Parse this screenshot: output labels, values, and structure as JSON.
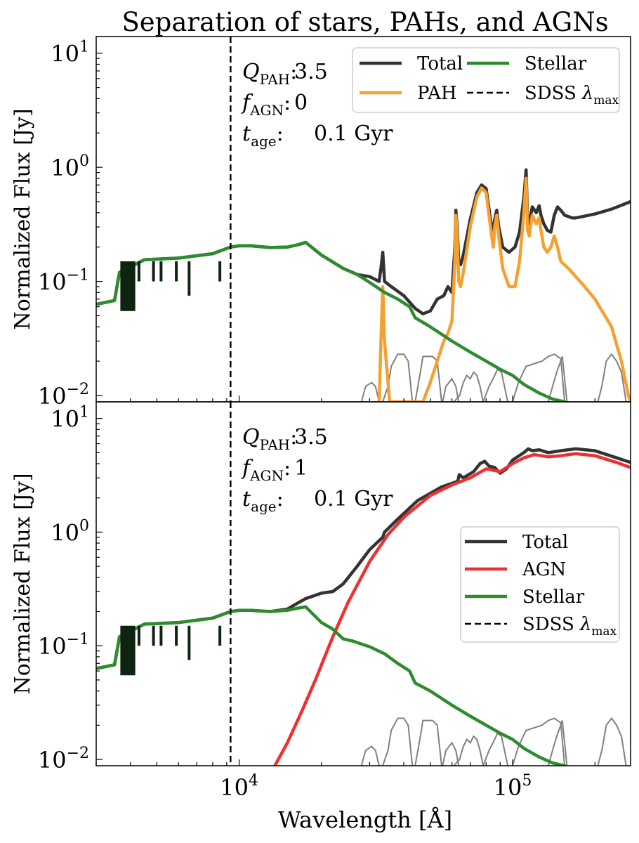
{
  "figure": {
    "title": "Separation of stars, PAHs, and AGNs",
    "xlabel": "Wavelength [Å]",
    "ylabel": "Normalized Flux [Jy]"
  },
  "chart_data": [
    {
      "type": "line",
      "panel": "top",
      "xscale": "log",
      "yscale": "log",
      "xlim": [
        3000,
        270000
      ],
      "ylim": [
        0.0088,
        14
      ],
      "x_ticks": [
        {
          "value": 10000,
          "base": "10",
          "exp": "4"
        },
        {
          "value": 100000,
          "base": "10",
          "exp": "5"
        }
      ],
      "y_ticks": [
        {
          "value": 0.01,
          "base": "10",
          "exp": "−2"
        },
        {
          "value": 0.1,
          "base": "10",
          "exp": "−1"
        },
        {
          "value": 1,
          "base": "10",
          "exp": "0"
        },
        {
          "value": 10,
          "base": "10",
          "exp": "1"
        }
      ],
      "annotations": [
        {
          "sym": "Q",
          "sub": "PAH",
          "value": "3.5"
        },
        {
          "sym": "f",
          "sub": "AGN",
          "value": "0"
        },
        {
          "sym": "t",
          "sub": "age",
          "value": "0.1 Gyr"
        }
      ],
      "legend": {
        "placement": "top-right",
        "columns": 2,
        "entries": [
          {
            "label": "Total",
            "series": "Total"
          },
          {
            "label": "Stellar",
            "series": "Stellar"
          },
          {
            "label": "PAH",
            "series": "PAH"
          },
          {
            "label": "SDSS",
            "math": "λ",
            "sub": "max",
            "series": "SDSS"
          }
        ]
      },
      "vline": {
        "x": 9300,
        "label": "SDSS λmax"
      },
      "series": [
        {
          "name": "Total",
          "color": "#333333",
          "width": 4.5,
          "x": [
            3000,
            3500,
            3650,
            4500,
            6000,
            8000,
            9300,
            10000,
            11000,
            13000,
            15000,
            16500,
            17500,
            20000,
            24000,
            27000,
            30000,
            32500,
            33000,
            33500,
            34000,
            36000,
            40000,
            44000,
            47000,
            50000,
            53000,
            56000,
            58000,
            60000,
            61500,
            62000,
            62700,
            63500,
            64500,
            66000,
            70000,
            74000,
            77000,
            80000,
            83000,
            85000,
            86000,
            87500,
            89000,
            92000,
            97000,
            102000,
            106000,
            110000,
            112000,
            113500,
            115000,
            118000,
            122000,
            125000,
            127000,
            130000,
            134000,
            138000,
            142000,
            146000,
            150000,
            155000,
            160000,
            165000,
            170000,
            180000,
            200000,
            230000,
            270000
          ],
          "y": [
            0.063,
            0.068,
            0.12,
            0.155,
            0.16,
            0.175,
            0.2,
            0.205,
            0.205,
            0.198,
            0.2,
            0.21,
            0.22,
            0.17,
            0.13,
            0.115,
            0.11,
            0.1,
            0.13,
            0.18,
            0.1,
            0.09,
            0.075,
            0.058,
            0.052,
            0.055,
            0.07,
            0.075,
            0.09,
            0.08,
            0.2,
            0.42,
            0.3,
            0.15,
            0.14,
            0.17,
            0.35,
            0.6,
            0.7,
            0.65,
            0.35,
            0.26,
            0.35,
            0.42,
            0.3,
            0.2,
            0.18,
            0.2,
            0.27,
            0.55,
            0.95,
            0.35,
            0.32,
            0.45,
            0.4,
            0.46,
            0.38,
            0.32,
            0.28,
            0.27,
            0.38,
            0.45,
            0.42,
            0.38,
            0.37,
            0.36,
            0.36,
            0.37,
            0.39,
            0.43,
            0.5
          ]
        },
        {
          "name": "PAH",
          "color": "#f5a030",
          "width": 4.5,
          "x": [
            32500,
            33000,
            33500,
            34000,
            35500,
            44000,
            47000,
            50000,
            53000,
            56000,
            58000,
            60000,
            61500,
            62000,
            62700,
            63500,
            64500,
            66000,
            70000,
            74000,
            77000,
            80000,
            83000,
            85000,
            86000,
            87500,
            89000,
            92000,
            97000,
            102000,
            106000,
            110000,
            112000,
            113500,
            115000,
            118000,
            122000,
            125000,
            127000,
            130000,
            134000,
            138000,
            142000,
            146000,
            150000,
            160000,
            180000,
            200000,
            230000,
            250000,
            265000,
            270000
          ],
          "y": [
            0.0088,
            0.03,
            0.09,
            0.03,
            0.0088,
            0.0088,
            0.0088,
            0.013,
            0.02,
            0.03,
            0.035,
            0.045,
            0.15,
            0.38,
            0.25,
            0.1,
            0.09,
            0.12,
            0.3,
            0.55,
            0.66,
            0.6,
            0.3,
            0.2,
            0.3,
            0.38,
            0.25,
            0.13,
            0.09,
            0.09,
            0.15,
            0.4,
            0.8,
            0.28,
            0.25,
            0.38,
            0.32,
            0.36,
            0.28,
            0.2,
            0.18,
            0.2,
            0.25,
            0.2,
            0.15,
            0.13,
            0.095,
            0.07,
            0.04,
            0.02,
            0.01,
            0.0088
          ]
        },
        {
          "name": "Stellar",
          "color": "#2e8b2e",
          "width": 4.5,
          "x": [
            3000,
            3500,
            3650,
            4500,
            6000,
            8000,
            9300,
            10000,
            11000,
            13000,
            15000,
            16500,
            17500,
            20000,
            24000,
            27000,
            30000,
            34000,
            38000,
            42000,
            44000,
            50000,
            60000,
            70000,
            80000,
            90000,
            100000,
            110000,
            125000,
            140000,
            155000
          ],
          "y": [
            0.063,
            0.068,
            0.12,
            0.155,
            0.16,
            0.175,
            0.2,
            0.205,
            0.205,
            0.198,
            0.2,
            0.21,
            0.22,
            0.17,
            0.13,
            0.115,
            0.098,
            0.08,
            0.07,
            0.06,
            0.048,
            0.04,
            0.03,
            0.024,
            0.02,
            0.017,
            0.015,
            0.0125,
            0.0105,
            0.0093,
            0.0088
          ]
        },
        {
          "name": "SDSS",
          "color": "#000000",
          "width": 2.5,
          "dashed": true,
          "x": [
            9300,
            9300
          ],
          "y": [
            0.0088,
            14
          ]
        }
      ]
    },
    {
      "type": "line",
      "panel": "bottom",
      "xscale": "log",
      "yscale": "log",
      "xlim": [
        3000,
        270000
      ],
      "ylim": [
        0.0088,
        14
      ],
      "x_ticks": [
        {
          "value": 10000,
          "base": "10",
          "exp": "4"
        },
        {
          "value": 100000,
          "base": "10",
          "exp": "5"
        }
      ],
      "y_ticks": [
        {
          "value": 0.01,
          "base": "10",
          "exp": "−2"
        },
        {
          "value": 0.1,
          "base": "10",
          "exp": "−1"
        },
        {
          "value": 1,
          "base": "10",
          "exp": "0"
        },
        {
          "value": 10,
          "base": "10",
          "exp": "1"
        }
      ],
      "annotations": [
        {
          "sym": "Q",
          "sub": "PAH",
          "value": "3.5"
        },
        {
          "sym": "f",
          "sub": "AGN",
          "value": "1"
        },
        {
          "sym": "t",
          "sub": "age",
          "value": "0.1 Gyr"
        }
      ],
      "legend": {
        "placement": "center-right",
        "columns": 1,
        "entries": [
          {
            "label": "Total",
            "series": "Total"
          },
          {
            "label": "AGN",
            "series": "AGN"
          },
          {
            "label": "Stellar",
            "series": "Stellar"
          },
          {
            "label": "SDSS",
            "math": "λ",
            "sub": "max",
            "series": "SDSS"
          }
        ]
      },
      "vline": {
        "x": 9300,
        "label": "SDSS λmax"
      },
      "series": [
        {
          "name": "Total",
          "color": "#333333",
          "width": 4.5,
          "x": [
            3000,
            3500,
            3650,
            4500,
            6000,
            8000,
            9300,
            10000,
            11000,
            13000,
            15000,
            16500,
            17500,
            20000,
            22000,
            24000,
            27000,
            30000,
            33500,
            34000,
            38000,
            45000,
            55000,
            63000,
            63800,
            66000,
            72000,
            76000,
            79000,
            82000,
            86000,
            90000,
            95000,
            100000,
            110000,
            114000,
            118000,
            125000,
            135000,
            150000,
            170000,
            200000,
            240000,
            270000
          ],
          "y": [
            0.063,
            0.068,
            0.12,
            0.155,
            0.16,
            0.175,
            0.2,
            0.205,
            0.205,
            0.2,
            0.21,
            0.24,
            0.26,
            0.29,
            0.3,
            0.35,
            0.5,
            0.7,
            0.9,
            1.0,
            1.3,
            1.9,
            2.5,
            2.8,
            3.2,
            3.0,
            3.4,
            4.0,
            4.2,
            3.8,
            3.7,
            3.3,
            3.6,
            4.3,
            5.0,
            5.4,
            5.2,
            5.3,
            5.0,
            5.2,
            5.4,
            5.2,
            4.5,
            4.1
          ]
        },
        {
          "name": "AGN",
          "color": "#f03030",
          "width": 4.5,
          "x": [
            13500,
            15000,
            17000,
            19000,
            22000,
            25000,
            30000,
            35000,
            40000,
            50000,
            60000,
            70000,
            80000,
            90000,
            100000,
            110000,
            120000,
            135000,
            150000,
            170000,
            200000,
            240000,
            270000
          ],
          "y": [
            0.0088,
            0.014,
            0.027,
            0.05,
            0.12,
            0.24,
            0.55,
            0.95,
            1.35,
            2.1,
            2.6,
            3.0,
            3.6,
            3.4,
            4.0,
            4.5,
            4.8,
            4.6,
            4.7,
            4.9,
            4.7,
            4.1,
            3.7
          ]
        },
        {
          "name": "Stellar",
          "color": "#2e8b2e",
          "width": 4.5,
          "x": [
            3000,
            3500,
            3650,
            4500,
            6000,
            8000,
            9300,
            10000,
            11000,
            13000,
            15000,
            16500,
            17500,
            20000,
            22000,
            24000,
            26000,
            30000,
            34000,
            38000,
            42000,
            44000,
            50000,
            60000,
            70000,
            80000,
            90000,
            100000,
            110000,
            125000,
            140000,
            155000
          ],
          "y": [
            0.063,
            0.068,
            0.12,
            0.155,
            0.16,
            0.175,
            0.2,
            0.205,
            0.205,
            0.2,
            0.205,
            0.215,
            0.22,
            0.16,
            0.14,
            0.115,
            0.11,
            0.098,
            0.085,
            0.07,
            0.06,
            0.047,
            0.04,
            0.03,
            0.024,
            0.02,
            0.017,
            0.015,
            0.0125,
            0.0105,
            0.0093,
            0.0088
          ]
        },
        {
          "name": "SDSS",
          "color": "#000000",
          "width": 2.5,
          "dashed": true,
          "x": [
            9300,
            9300
          ],
          "y": [
            0.0088,
            14
          ]
        }
      ]
    }
  ],
  "filters": {
    "color": "#808080",
    "width": 2,
    "curves": [
      {
        "x": [
          28000,
          29000,
          30500,
          31500,
          32500
        ],
        "y": [
          0.0088,
          0.012,
          0.013,
          0.012,
          0.0088
        ]
      },
      {
        "x": [
          33500,
          35000,
          36000,
          38000,
          40000,
          41500,
          43000
        ],
        "y": [
          0.0088,
          0.012,
          0.018,
          0.023,
          0.023,
          0.02,
          0.0088
        ]
      },
      {
        "x": [
          44000,
          46000,
          47000,
          49000,
          51000,
          53000,
          55000
        ],
        "y": [
          0.0088,
          0.016,
          0.022,
          0.022,
          0.022,
          0.02,
          0.0088
        ]
      },
      {
        "x": [
          55500,
          57000,
          60000,
          62000,
          63500
        ],
        "y": [
          0.0088,
          0.012,
          0.014,
          0.012,
          0.0088
        ]
      },
      {
        "x": [
          61000,
          64000,
          66000,
          68000,
          70000,
          72000,
          74000,
          76000,
          78000
        ],
        "y": [
          0.0088,
          0.01,
          0.013,
          0.015,
          0.014,
          0.016,
          0.015,
          0.012,
          0.0088
        ]
      },
      {
        "x": [
          78000,
          82000,
          86000,
          88000,
          91000,
          96000
        ],
        "y": [
          0.0088,
          0.012,
          0.015,
          0.017,
          0.016,
          0.0088
        ]
      },
      {
        "x": [
          100000,
          105000,
          108000,
          112000,
          120000,
          128000,
          135000,
          142000,
          150000,
          155000
        ],
        "y": [
          0.0088,
          0.013,
          0.015,
          0.018,
          0.019,
          0.02,
          0.022,
          0.023,
          0.021,
          0.0088
        ]
      },
      {
        "x": [
          135000,
          140000,
          145000,
          152000,
          158000
        ],
        "y": [
          0.0088,
          0.012,
          0.016,
          0.022,
          0.0088
        ]
      },
      {
        "x": [
          205000,
          212000,
          220000,
          230000,
          240000,
          250000,
          260000
        ],
        "y": [
          0.0088,
          0.012,
          0.02,
          0.023,
          0.02,
          0.016,
          0.0088
        ]
      }
    ]
  }
}
